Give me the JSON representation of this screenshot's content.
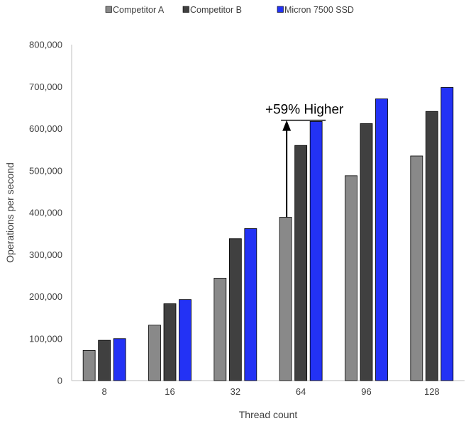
{
  "chart_data": {
    "type": "bar",
    "categories": [
      "8",
      "16",
      "32",
      "64",
      "96",
      "128"
    ],
    "series": [
      {
        "name": "Competitor A",
        "color": "#898989",
        "values": [
          72000,
          132000,
          244000,
          389000,
          488000,
          535000
        ]
      },
      {
        "name": "Competitor B",
        "color": "#404040",
        "values": [
          96000,
          183000,
          338000,
          560000,
          612000,
          641000
        ]
      },
      {
        "name": "Micron 7500 SSD",
        "color": "#2332f5",
        "values": [
          100000,
          193000,
          362000,
          617000,
          671000,
          698000
        ]
      }
    ],
    "xlabel": "Thread count",
    "ylabel": "Operations per second",
    "ylim": [
      0,
      800000
    ],
    "yticks": [
      0,
      100000,
      200000,
      300000,
      400000,
      500000,
      600000,
      700000,
      800000
    ],
    "ytick_labels": [
      "0",
      "100,000",
      "200,000",
      "300,000",
      "400,000",
      "500,000",
      "600,000",
      "700,000",
      "800,000"
    ],
    "legend_position": "top",
    "grid": false,
    "annotation": {
      "text": "+59% Higher",
      "category": "64",
      "from_value": 389000,
      "to_value": 620000
    }
  }
}
